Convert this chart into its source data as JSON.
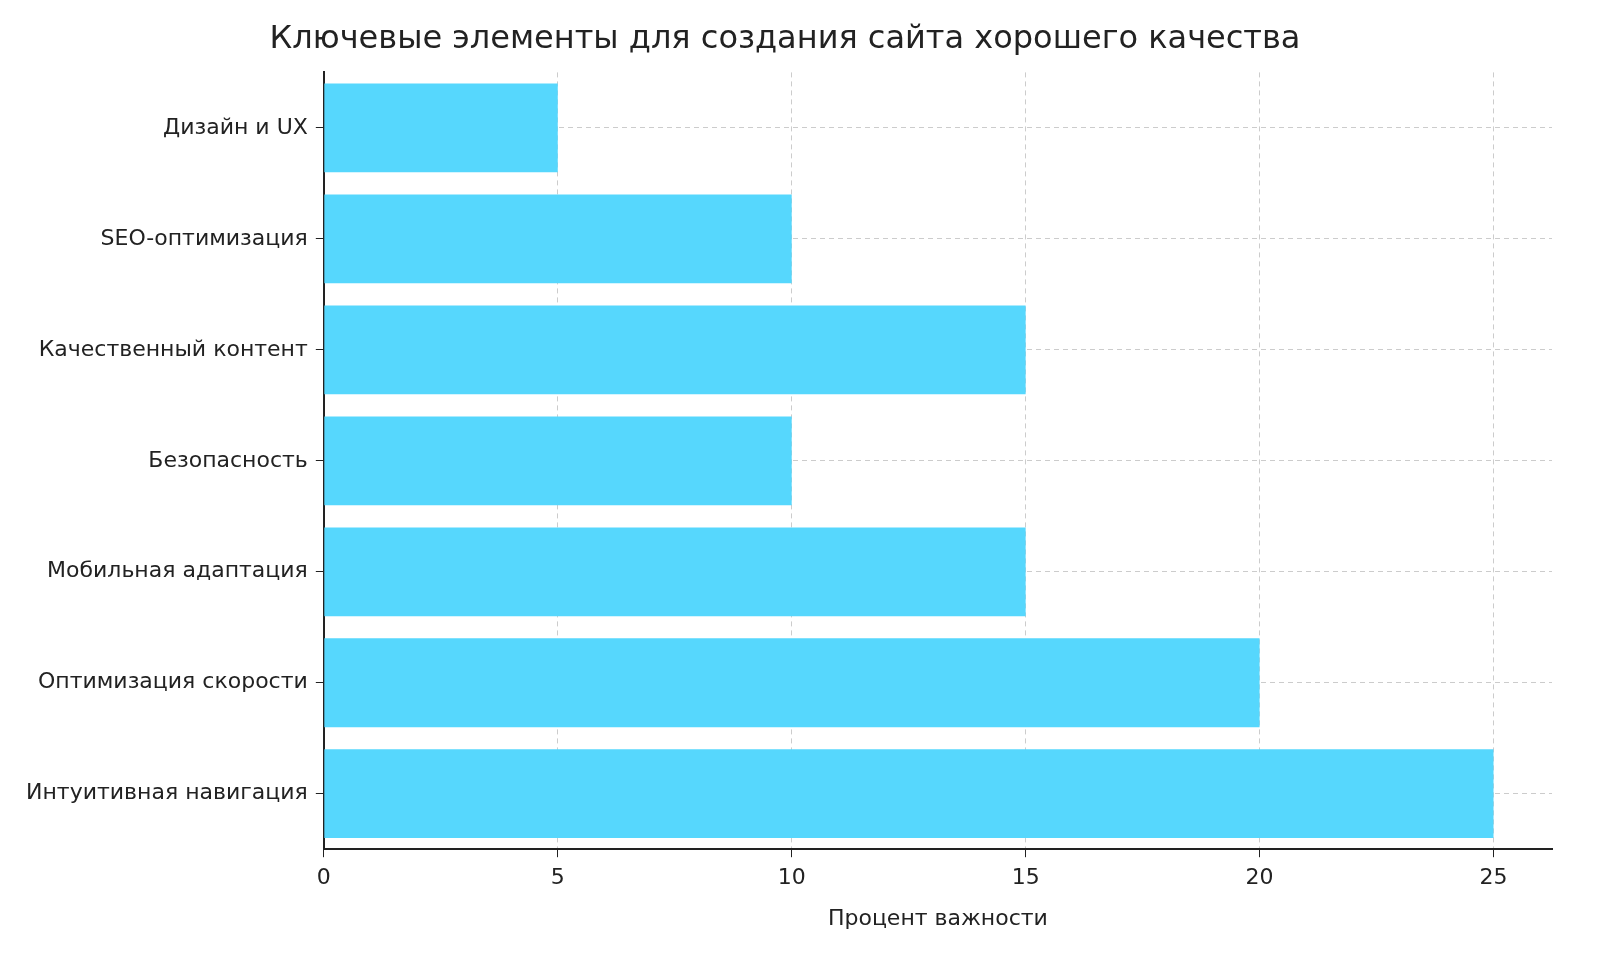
{
  "chart_data": {
    "type": "bar",
    "orientation": "horizontal",
    "title": "Ключевые элементы для создания сайта хорошего качества",
    "xlabel": "Процент важности",
    "categories": [
      "Дизайн и UX",
      "SEO-оптимизация",
      "Качественный контент",
      "Безопасность",
      "Мобильная адаптация",
      "Оптимизация скорости",
      "Интуитивная навигация"
    ],
    "values": [
      5,
      10,
      15,
      10,
      15,
      20,
      25
    ],
    "color": "#56d7fd",
    "xlim": [
      0,
      26.25
    ],
    "xticks": [
      0,
      5,
      10,
      15,
      20,
      25
    ],
    "grid": true
  }
}
